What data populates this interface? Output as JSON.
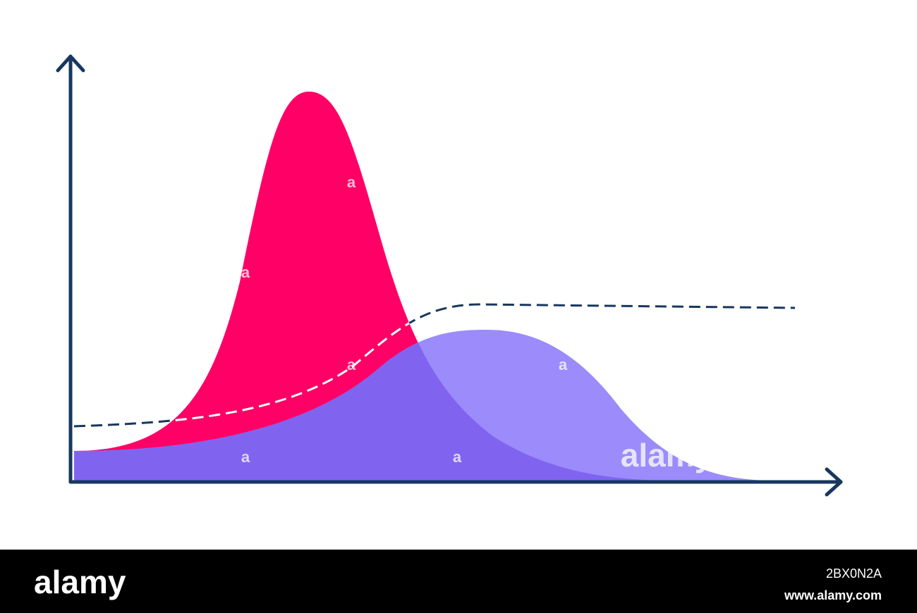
{
  "watermark": {
    "logo": "alamy",
    "mark": "a"
  },
  "footer": {
    "brand": "alamy",
    "image_id": "2BX0N2A",
    "url": "www.alamy.com"
  }
}
